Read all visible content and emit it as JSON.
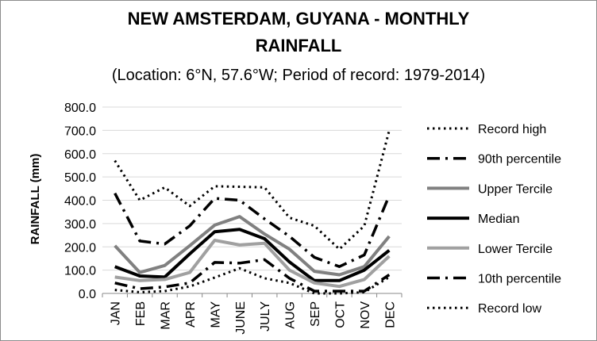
{
  "chart_data": {
    "type": "line",
    "title_line1": "NEW AMSTERDAM, GUYANA - MONTHLY",
    "title_line2": "RAINFALL",
    "subtitle": "(Location: 6°N, 57.6°W; Period of record: 1979-2014)",
    "ylabel": "RAINFALL (mm)",
    "xlabel": "",
    "ylim": [
      0,
      800
    ],
    "ytick_labels": [
      "0.0",
      "100.0",
      "200.0",
      "300.0",
      "400.0",
      "500.0",
      "600.0",
      "700.0",
      "800.0"
    ],
    "grid": "horizontal",
    "legend_position": "right",
    "categories": [
      "JAN",
      "FEB",
      "MAR",
      "APR",
      "MAY",
      "JUNE",
      "JULY",
      "AUG",
      "SEP",
      "OCT",
      "NOV",
      "DEC"
    ],
    "series": [
      {
        "name": "Record high",
        "color": "#000000",
        "style": "dotted",
        "values": [
          570,
          400,
          455,
          375,
          460,
          458,
          455,
          325,
          290,
          190,
          290,
          700
        ]
      },
      {
        "name": "90th percentile",
        "color": "#000000",
        "style": "dashdot",
        "values": [
          430,
          225,
          212,
          290,
          408,
          400,
          320,
          245,
          155,
          115,
          165,
          420
        ]
      },
      {
        "name": "Upper Tercile",
        "color": "#808080",
        "style": "solid",
        "values": [
          205,
          90,
          120,
          205,
          293,
          330,
          255,
          190,
          95,
          80,
          115,
          245
        ]
      },
      {
        "name": "Median",
        "color": "#000000",
        "style": "solid",
        "values": [
          115,
          75,
          70,
          170,
          265,
          275,
          235,
          135,
          55,
          55,
          100,
          185
        ]
      },
      {
        "name": "Lower Tercile",
        "color": "#a0a0a0",
        "style": "solid",
        "values": [
          70,
          55,
          60,
          90,
          228,
          208,
          215,
          100,
          45,
          30,
          60,
          160
        ]
      },
      {
        "name": "10th percentile",
        "color": "#000000",
        "style": "dashdot",
        "values": [
          45,
          20,
          28,
          45,
          133,
          130,
          145,
          65,
          10,
          10,
          10,
          80
        ]
      },
      {
        "name": "Record low",
        "color": "#000000",
        "style": "dotted",
        "values": [
          15,
          5,
          10,
          30,
          68,
          108,
          65,
          45,
          0,
          0,
          5,
          70
        ]
      }
    ]
  }
}
